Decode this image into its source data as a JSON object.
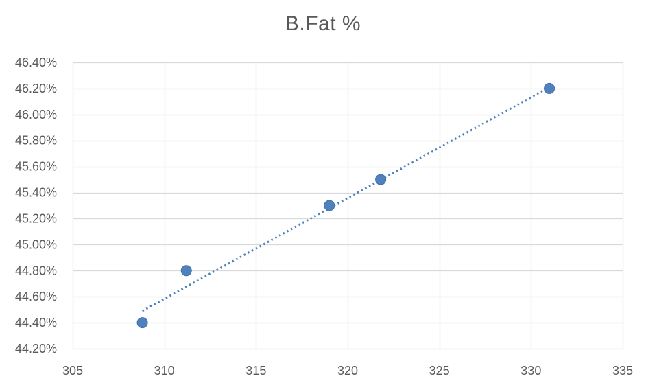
{
  "chart_data": {
    "type": "scatter",
    "title": "B.Fat %",
    "xlabel": "",
    "ylabel": "",
    "xlim": [
      305,
      335
    ],
    "ylim": [
      44.2,
      46.4
    ],
    "xticks": [
      305,
      310,
      315,
      320,
      325,
      330,
      335
    ],
    "xtick_labels": [
      "305",
      "310",
      "315",
      "320",
      "325",
      "330",
      "335"
    ],
    "yticks": [
      44.2,
      44.4,
      44.6,
      44.8,
      45.0,
      45.2,
      45.4,
      45.6,
      45.8,
      46.0,
      46.2,
      46.4
    ],
    "ytick_labels": [
      "44.20%",
      "44.40%",
      "44.60%",
      "44.80%",
      "45.00%",
      "45.20%",
      "45.40%",
      "45.60%",
      "45.80%",
      "46.00%",
      "46.20%",
      "46.40%"
    ],
    "grid": true,
    "series": [
      {
        "x": [
          308.8,
          311.2,
          319.0,
          321.8,
          331.0
        ],
        "y": [
          44.4,
          44.8,
          45.3,
          45.5,
          46.2
        ],
        "color": "#4f81bd"
      }
    ],
    "trendline": {
      "type": "linear",
      "x": [
        308.8,
        331.0
      ],
      "y": [
        44.49,
        46.21
      ],
      "color": "#4f81bd",
      "style": "dotted"
    }
  }
}
